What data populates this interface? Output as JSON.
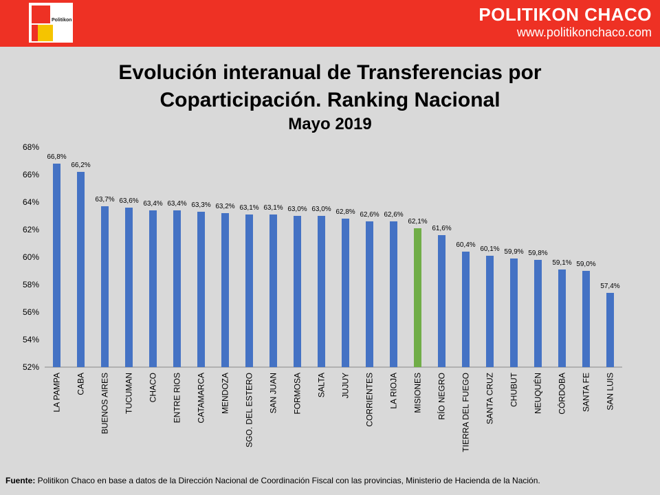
{
  "header": {
    "logo_text": "Politikon",
    "brand_name": "POLITIKON CHACO",
    "brand_url": "www.politikonchaco.com"
  },
  "title": {
    "line1": "Evolución interanual de Transferencias por",
    "line2": "Coparticipación. Ranking Nacional",
    "subtitle": "Mayo 2019"
  },
  "chart_data": {
    "type": "bar",
    "categories": [
      "LA PAMPA",
      "CABA",
      "BUENOS AIRES",
      "TUCUMAN",
      "CHACO",
      "ENTRE RIOS",
      "CATAMARCA",
      "MENDOZA",
      "SGO. DEL ESTERO",
      "SAN JUAN",
      "FORMOSA",
      "SALTA",
      "JUJUY",
      "CORRIENTES",
      "LA RIOJA",
      "MISIONES",
      "RÍO NEGRO",
      "TIERRA DEL FUEGO",
      "SANTA CRUZ",
      "CHUBUT",
      "NEUQUÉN",
      "CÓRDOBA",
      "SANTA FE",
      "SAN LUIS"
    ],
    "values": [
      66.8,
      66.2,
      63.7,
      63.6,
      63.4,
      63.4,
      63.3,
      63.2,
      63.1,
      63.1,
      63.0,
      63.0,
      62.8,
      62.6,
      62.6,
      62.1,
      61.6,
      60.4,
      60.1,
      59.9,
      59.8,
      59.1,
      59.0,
      57.4
    ],
    "value_labels": [
      "66,8%",
      "66,2%",
      "63,7%",
      "63,6%",
      "63,4%",
      "63,4%",
      "63,3%",
      "63,2%",
      "63,1%",
      "63,1%",
      "63,0%",
      "63,0%",
      "62,8%",
      "62,6%",
      "62,6%",
      "62,1%",
      "61,6%",
      "60,4%",
      "60,1%",
      "59,9%",
      "59,8%",
      "59,1%",
      "59,0%",
      "57,4%"
    ],
    "highlight_index": 15,
    "ylim": [
      52,
      68
    ],
    "yticks": [
      52,
      54,
      56,
      58,
      60,
      62,
      64,
      66,
      68
    ],
    "ytick_labels": [
      "52%",
      "54%",
      "56%",
      "58%",
      "60%",
      "62%",
      "64%",
      "66%",
      "68%"
    ],
    "grid": false,
    "colors": {
      "bar": "#4472c4",
      "highlight": "#70ad47"
    }
  },
  "footer": {
    "label": "Fuente:",
    "text": " Politikon Chaco en base a datos de la Dirección Nacional de Coordinación  Fiscal con las provincias,  Ministerio de Hacienda de la Nación."
  }
}
